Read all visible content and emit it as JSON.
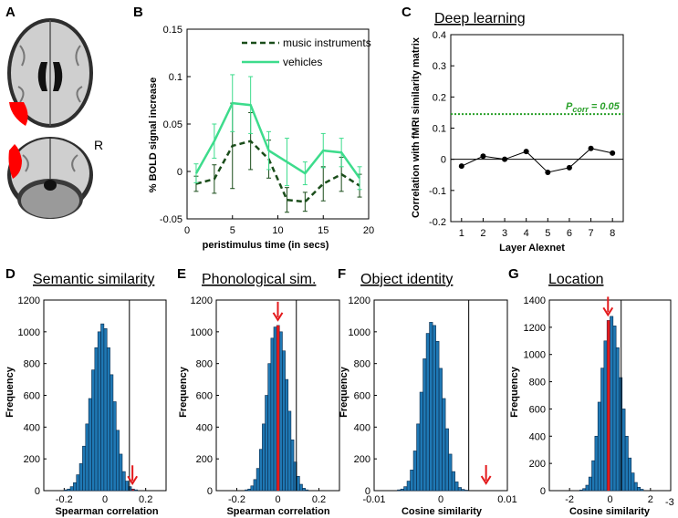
{
  "panel_letters": [
    "A",
    "B",
    "C",
    "D",
    "E",
    "F",
    "G"
  ],
  "brain": {
    "label_r": "R"
  },
  "chart_data": [
    {
      "id": "B",
      "type": "line",
      "title": "",
      "xlabel": "peristimulus time (in secs)",
      "ylabel": "% BOLD signal increase",
      "xlim": [
        0,
        20
      ],
      "ylim": [
        -0.05,
        0.15
      ],
      "xticks": [
        0,
        5,
        10,
        15,
        20
      ],
      "yticks": [
        -0.05,
        0,
        0.05,
        0.1,
        0.15
      ],
      "ytick_labels": [
        "-0.05",
        "0",
        "0.05",
        "0.1",
        "0.15"
      ],
      "x": [
        1,
        3,
        5,
        7,
        9,
        11,
        13,
        15,
        17,
        19
      ],
      "series": [
        {
          "name": "music instruments",
          "color": "#1a4d1a",
          "dashed": true,
          "values": [
            -0.013,
            -0.008,
            0.027,
            0.032,
            0.013,
            -0.03,
            -0.032,
            -0.013,
            -0.003,
            -0.015
          ],
          "errors": [
            0.008,
            0.015,
            0.045,
            0.03,
            0.02,
            0.013,
            0.01,
            0.018,
            0.018,
            0.012
          ]
        },
        {
          "name": "vehicles",
          "color": "#3ddc8c",
          "dashed": false,
          "values": [
            -0.002,
            0.032,
            0.072,
            0.07,
            0.022,
            0.01,
            -0.002,
            0.022,
            0.02,
            -0.007
          ],
          "errors": [
            0.01,
            0.018,
            0.03,
            0.03,
            0.02,
            0.025,
            0.012,
            0.018,
            0.015,
            0.012
          ]
        }
      ]
    },
    {
      "id": "C",
      "type": "line",
      "title": "Deep learning",
      "xlabel": "Layer Alexnet",
      "ylabel": "Correlation with fMRI similarity matrix",
      "xlim": [
        0.5,
        8.5
      ],
      "ylim": [
        -0.2,
        0.4
      ],
      "xticks": [
        1,
        2,
        3,
        4,
        5,
        6,
        7,
        8
      ],
      "yticks": [
        -0.2,
        -0.1,
        0,
        0.1,
        0.2,
        0.3,
        0.4
      ],
      "ytick_labels": [
        "-0.2",
        "-0.1",
        "0",
        "0.1",
        "0.2",
        "0.3",
        "0.4"
      ],
      "x": [
        1,
        2,
        3,
        4,
        5,
        6,
        7,
        8
      ],
      "values": [
        -0.022,
        0.01,
        0.0,
        0.025,
        -0.042,
        -0.027,
        0.035,
        0.02
      ],
      "threshold": {
        "value": 0.145,
        "label_main": "P",
        "label_sub": "corr",
        "label_val": "= 0.05",
        "color": "#2aa02a"
      }
    },
    {
      "id": "D",
      "type": "bar",
      "title": "Semantic similarity",
      "xlabel": "Spearman correlation",
      "ylabel": "Frequency",
      "xlim": [
        -0.3,
        0.3
      ],
      "ylim": [
        0,
        1200
      ],
      "xticks": [
        -0.2,
        0,
        0.2
      ],
      "xtick_labels": [
        "-0.2",
        "0",
        "0.2"
      ],
      "yticks": [
        0,
        200,
        400,
        600,
        800,
        1000,
        1200
      ],
      "bin_start": -0.2,
      "bin_width": 0.015,
      "values": [
        5,
        10,
        25,
        50,
        100,
        170,
        280,
        420,
        580,
        760,
        900,
        1000,
        1050,
        1020,
        900,
        730,
        560,
        380,
        230,
        120,
        60,
        25,
        10,
        5
      ],
      "observed": 0.135,
      "highlight_bin": 22,
      "vline": 0.12
    },
    {
      "id": "E",
      "type": "bar",
      "title": "Phonological sim.",
      "xlabel": "Spearman correlation",
      "ylabel": "Frequency",
      "xlim": [
        -0.3,
        0.3
      ],
      "ylim": [
        0,
        1200
      ],
      "xticks": [
        -0.2,
        0,
        0.2
      ],
      "xtick_labels": [
        "-0.2",
        "0",
        "0.2"
      ],
      "yticks": [
        0,
        200,
        400,
        600,
        800,
        1000,
        1200
      ],
      "bin_start": -0.16,
      "bin_width": 0.014,
      "values": [
        5,
        10,
        30,
        70,
        140,
        260,
        420,
        600,
        800,
        960,
        1030,
        1040,
        1000,
        880,
        700,
        500,
        320,
        180,
        90,
        40,
        15,
        5
      ],
      "observed": 0.0,
      "highlight_bin": 11,
      "vline": 0.09
    },
    {
      "id": "F",
      "type": "bar",
      "title": "Object identity",
      "xlabel": "Cosine similarity",
      "ylabel": "Frequency",
      "xlim": [
        -0.01,
        0.01
      ],
      "ylim": [
        0,
        1200
      ],
      "xticks": [
        -0.01,
        0,
        0.01
      ],
      "xtick_labels": [
        "-0.01",
        "0",
        "0.01"
      ],
      "yticks": [
        0,
        200,
        400,
        600,
        800,
        1000,
        1200
      ],
      "bin_start": -0.0065,
      "bin_width": 0.00048,
      "values": [
        5,
        10,
        25,
        60,
        130,
        250,
        420,
        620,
        830,
        990,
        1060,
        1040,
        940,
        770,
        580,
        390,
        230,
        120,
        55,
        20,
        8,
        3
      ],
      "observed": 0.0068,
      "highlight_bin": -1,
      "vline": 0.0042
    },
    {
      "id": "G",
      "type": "bar",
      "title": "Location",
      "xlabel": "Cosine similarity",
      "ylabel": "Frequency",
      "xlim": [
        -3,
        3
      ],
      "ylim": [
        0,
        1400
      ],
      "xticks": [
        -2,
        0,
        2
      ],
      "xtick_labels": [
        "-2",
        "0",
        "2"
      ],
      "x_exponent": "-3",
      "yticks": [
        0,
        200,
        400,
        600,
        800,
        1000,
        1200,
        1400
      ],
      "bin_start": -1.5,
      "bin_width": 0.15,
      "values": [
        5,
        15,
        40,
        100,
        220,
        400,
        650,
        900,
        1100,
        1250,
        1280,
        1210,
        1050,
        830,
        600,
        400,
        240,
        130,
        60,
        25,
        10
      ],
      "observed": -0.1,
      "highlight_bin": 9,
      "vline": 0.55
    }
  ]
}
